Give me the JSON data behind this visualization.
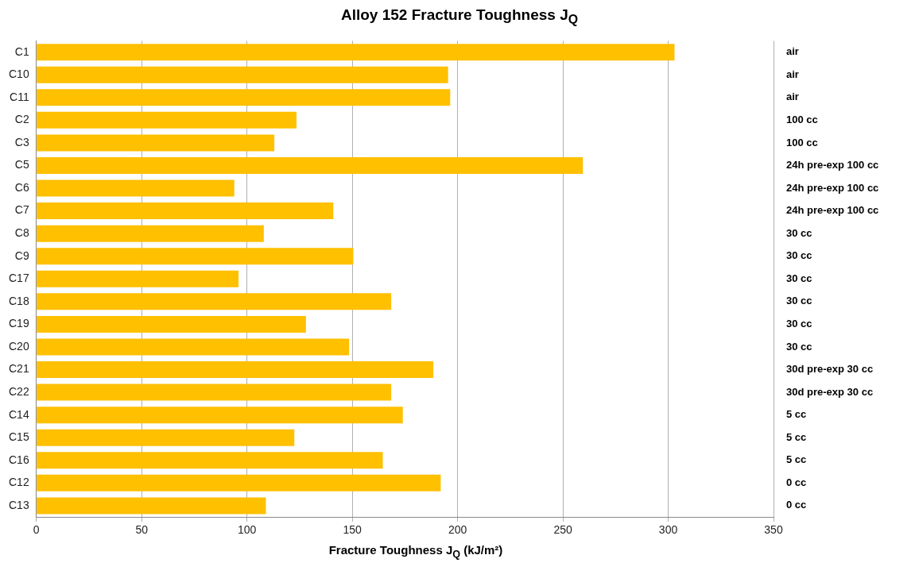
{
  "chart_data": {
    "type": "bar",
    "orientation": "horizontal",
    "title": "Alloy 152 Fracture Toughness J$_{Q}$",
    "xlabel": "Fracture Toughness J$_{Q}$ (kJ/m²)",
    "categories": [
      "C1",
      "C10",
      "C11",
      "C2",
      "C3",
      "C5",
      "C6",
      "C7",
      "C8",
      "C9",
      "C17",
      "C18",
      "C19",
      "C20",
      "C21",
      "C22",
      "C14",
      "C15",
      "C16",
      "C12",
      "C13"
    ],
    "values": [
      303,
      195.5,
      196.5,
      123.5,
      113,
      259.5,
      94,
      141,
      108,
      150.5,
      96,
      168.5,
      128,
      148.5,
      188.5,
      168.5,
      174,
      122.5,
      164.5,
      192,
      109
    ],
    "color": "#ffc000",
    "xlim": [
      0,
      350
    ],
    "xticks": [
      0,
      50,
      100,
      150,
      200,
      250,
      300,
      350
    ],
    "grid": "x",
    "legend": false,
    "annotations": [
      "air",
      "air",
      "air",
      "100 cc",
      "100 cc",
      "24h pre-exp 100 cc",
      "24h pre-exp 100 cc",
      "24h pre-exp 100 cc",
      "30 cc",
      "30 cc",
      "30 cc",
      "30 cc",
      "30 cc",
      "30 cc",
      "30d pre-exp 30 cc",
      "30d pre-exp 30 cc",
      "5 cc",
      "5 cc",
      "5 cc",
      "0 cc",
      "0 cc"
    ]
  }
}
